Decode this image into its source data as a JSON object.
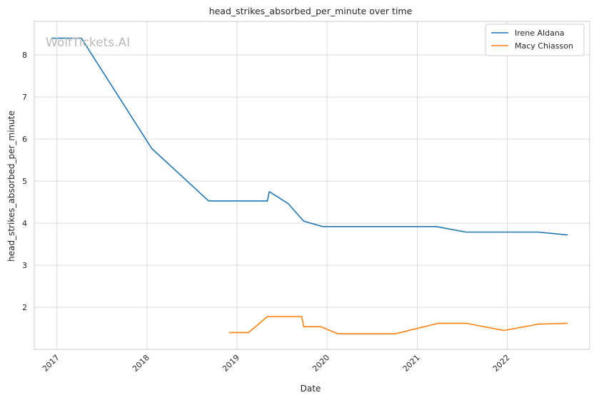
{
  "chart_data": {
    "type": "line",
    "title": "head_strikes_absorbed_per_minute over time",
    "xlabel": "Date",
    "ylabel": "head_strikes_absorbed_per_minute",
    "watermark": "WolfTickets.AI",
    "x_tick_labels": [
      "2017",
      "2018",
      "2019",
      "2020",
      "2021",
      "2022"
    ],
    "y_tick_labels": [
      "2",
      "3",
      "4",
      "5",
      "6",
      "7",
      "8"
    ],
    "xlim": [
      "2016-10-01",
      "2022-12-01"
    ],
    "ylim": [
      1.0,
      8.8
    ],
    "grid": true,
    "legend_position": "top-right",
    "colors": {
      "Irene Aldana": "#1f77b4",
      "Macy Chiasson": "#ff7f0e"
    },
    "series": [
      {
        "name": "Irene Aldana",
        "color": "#1f77b4",
        "points": [
          [
            "2016-12-10",
            8.4
          ],
          [
            "2017-04-10",
            8.4
          ],
          [
            "2018-01-20",
            5.78
          ],
          [
            "2018-09-08",
            4.53
          ],
          [
            "2019-05-04",
            4.53
          ],
          [
            "2019-05-12",
            4.75
          ],
          [
            "2019-07-27",
            4.47
          ],
          [
            "2019-09-28",
            4.05
          ],
          [
            "2019-12-14",
            3.92
          ],
          [
            "2021-03-20",
            3.92
          ],
          [
            "2021-07-17",
            3.79
          ],
          [
            "2022-05-07",
            3.79
          ],
          [
            "2022-09-03",
            3.72
          ]
        ]
      },
      {
        "name": "Macy Chiasson",
        "color": "#ff7f0e",
        "points": [
          [
            "2018-11-30",
            1.4
          ],
          [
            "2019-02-17",
            1.4
          ],
          [
            "2019-05-04",
            1.78
          ],
          [
            "2019-09-21",
            1.78
          ],
          [
            "2019-09-28",
            1.54
          ],
          [
            "2019-12-07",
            1.54
          ],
          [
            "2020-02-15",
            1.37
          ],
          [
            "2020-10-03",
            1.37
          ],
          [
            "2021-03-27",
            1.62
          ],
          [
            "2021-07-17",
            1.62
          ],
          [
            "2021-12-18",
            1.45
          ],
          [
            "2022-05-07",
            1.6
          ],
          [
            "2022-09-03",
            1.62
          ]
        ]
      }
    ]
  }
}
